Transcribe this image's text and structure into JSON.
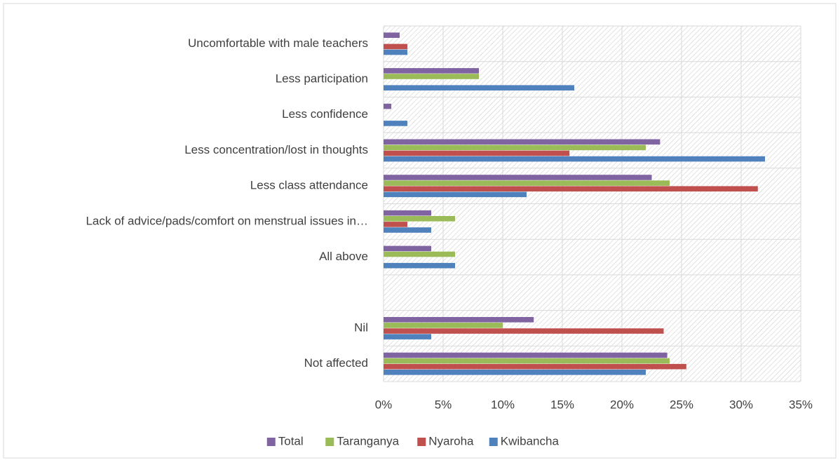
{
  "chart_data": {
    "type": "hbar",
    "categories": [
      "Uncomfortable with male teachers",
      "Less participation",
      "Less confidence",
      "Less concentration/lost in thoughts",
      "Less class attendance",
      "Lack of advice/pads/comfort on menstrual issues in…",
      "All above",
      null,
      "Nil",
      "Not affected"
    ],
    "series": [
      {
        "name": "Total",
        "color": "#8064a2",
        "values": [
          1.35,
          8,
          0.65,
          23.2,
          22.5,
          4,
          4,
          0,
          12.6,
          23.8
        ]
      },
      {
        "name": "Taranganya",
        "color": "#9bbb59",
        "values": [
          0,
          8,
          0,
          22,
          24,
          6,
          6,
          0,
          10,
          24
        ]
      },
      {
        "name": "Nyaroha",
        "color": "#c0504d",
        "values": [
          2,
          0,
          0,
          15.6,
          31.4,
          2,
          0,
          0,
          23.5,
          25.4
        ]
      },
      {
        "name": "Kwibancha",
        "color": "#4f81bd",
        "values": [
          2,
          16,
          2,
          32,
          12,
          4,
          6,
          0,
          4,
          22
        ]
      }
    ],
    "xlim": [
      0,
      35
    ],
    "xticks": [
      {
        "value": 0,
        "label": "0%"
      },
      {
        "value": 5,
        "label": "5%"
      },
      {
        "value": 10,
        "label": "10%"
      },
      {
        "value": 15,
        "label": "15%"
      },
      {
        "value": 20,
        "label": "20%"
      },
      {
        "value": 25,
        "label": "25%"
      },
      {
        "value": 30,
        "label": "30%"
      },
      {
        "value": 35,
        "label": "35%"
      }
    ],
    "grid": true,
    "legend": "bottom"
  }
}
